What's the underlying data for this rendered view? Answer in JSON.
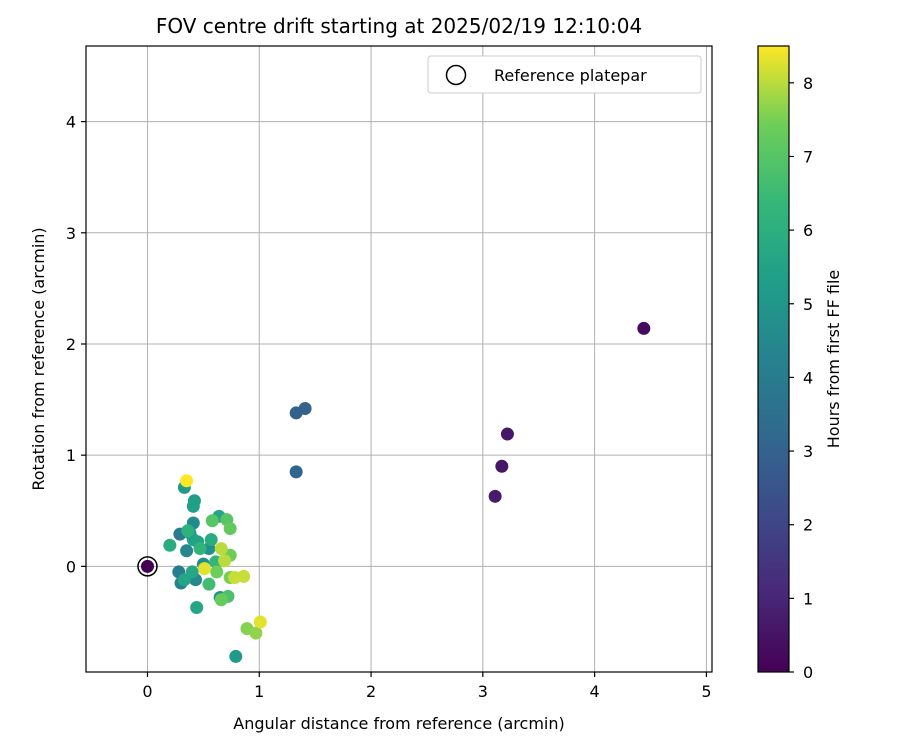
{
  "chart_data": {
    "type": "scatter",
    "title": "FOV centre drift starting at 2025/02/19 12:10:04",
    "xlabel": "Angular distance from reference (arcmin)",
    "ylabel": "Rotation from reference (arcmin)",
    "xlim": [
      -0.55,
      5.05
    ],
    "ylim": [
      -0.95,
      4.68
    ],
    "xticks": [
      0,
      1,
      2,
      3,
      4,
      5
    ],
    "yticks": [
      0,
      1,
      2,
      3,
      4
    ],
    "grid": true,
    "legend": {
      "position": "top-right",
      "label": "Reference platepar"
    },
    "reference_point": {
      "x": 0,
      "y": 0
    },
    "colorbar": {
      "label": "Hours from first FF file",
      "range": [
        0,
        8.5
      ],
      "ticks": [
        0,
        1,
        2,
        3,
        4,
        5,
        6,
        7,
        8
      ],
      "colormap": "viridis"
    },
    "points": [
      {
        "x": 4.44,
        "y": 2.14,
        "c": 0.3
      },
      {
        "x": 3.22,
        "y": 1.19,
        "c": 0.6
      },
      {
        "x": 3.17,
        "y": 0.9,
        "c": 0.6
      },
      {
        "x": 3.11,
        "y": 0.63,
        "c": 0.7
      },
      {
        "x": 1.33,
        "y": 1.38,
        "c": 3.0
      },
      {
        "x": 1.41,
        "y": 1.42,
        "c": 3.0
      },
      {
        "x": 1.33,
        "y": 0.85,
        "c": 3.1
      },
      {
        "x": 0.29,
        "y": 0.29,
        "c": 4.0
      },
      {
        "x": 0.28,
        "y": -0.05,
        "c": 4.1
      },
      {
        "x": 0.3,
        "y": -0.15,
        "c": 4.3
      },
      {
        "x": 0.35,
        "y": 0.14,
        "c": 4.4
      },
      {
        "x": 0.41,
        "y": 0.39,
        "c": 4.6
      },
      {
        "x": 0.43,
        "y": -0.12,
        "c": 4.5
      },
      {
        "x": 0.5,
        "y": 0.02,
        "c": 4.7
      },
      {
        "x": 0.55,
        "y": 0.16,
        "c": 4.8
      },
      {
        "x": 0.65,
        "y": -0.28,
        "c": 4.9
      },
      {
        "x": 0.33,
        "y": 0.71,
        "c": 5.2
      },
      {
        "x": 0.41,
        "y": 0.54,
        "c": 5.4
      },
      {
        "x": 0.42,
        "y": 0.59,
        "c": 5.4
      },
      {
        "x": 0.38,
        "y": 0.3,
        "c": 5.3
      },
      {
        "x": 0.41,
        "y": 0.24,
        "c": 5.4
      },
      {
        "x": 0.45,
        "y": 0.22,
        "c": 5.5
      },
      {
        "x": 0.33,
        "y": -0.12,
        "c": 5.6
      },
      {
        "x": 0.4,
        "y": -0.05,
        "c": 5.7
      },
      {
        "x": 0.44,
        "y": -0.37,
        "c": 5.6
      },
      {
        "x": 0.64,
        "y": 0.45,
        "c": 5.6
      },
      {
        "x": 0.57,
        "y": 0.24,
        "c": 5.9
      },
      {
        "x": 0.79,
        "y": -0.81,
        "c": 5.2
      },
      {
        "x": 0.2,
        "y": 0.19,
        "c": 5.9
      },
      {
        "x": 0.36,
        "y": 0.32,
        "c": 6.1
      },
      {
        "x": 0.47,
        "y": 0.16,
        "c": 6.2
      },
      {
        "x": 0.61,
        "y": 0.04,
        "c": 6.3
      },
      {
        "x": 0.55,
        "y": -0.16,
        "c": 6.6
      },
      {
        "x": 0.72,
        "y": -0.27,
        "c": 6.8
      },
      {
        "x": 0.71,
        "y": 0.42,
        "c": 7.0
      },
      {
        "x": 0.58,
        "y": 0.41,
        "c": 7.0
      },
      {
        "x": 0.74,
        "y": 0.34,
        "c": 7.2
      },
      {
        "x": 0.62,
        "y": -0.05,
        "c": 7.4
      },
      {
        "x": 0.66,
        "y": -0.3,
        "c": 7.3
      },
      {
        "x": 0.74,
        "y": 0.1,
        "c": 7.4
      },
      {
        "x": 0.74,
        "y": -0.1,
        "c": 7.5
      },
      {
        "x": 0.89,
        "y": -0.56,
        "c": 7.6
      },
      {
        "x": 0.97,
        "y": -0.6,
        "c": 7.7
      },
      {
        "x": 0.66,
        "y": 0.16,
        "c": 8.0
      },
      {
        "x": 0.69,
        "y": 0.05,
        "c": 8.0
      },
      {
        "x": 0.78,
        "y": -0.1,
        "c": 8.1
      },
      {
        "x": 0.86,
        "y": -0.09,
        "c": 8.1
      },
      {
        "x": 0.51,
        "y": -0.02,
        "c": 8.3
      },
      {
        "x": 1.01,
        "y": -0.5,
        "c": 8.3
      },
      {
        "x": 0.35,
        "y": 0.77,
        "c": 8.5
      }
    ]
  }
}
